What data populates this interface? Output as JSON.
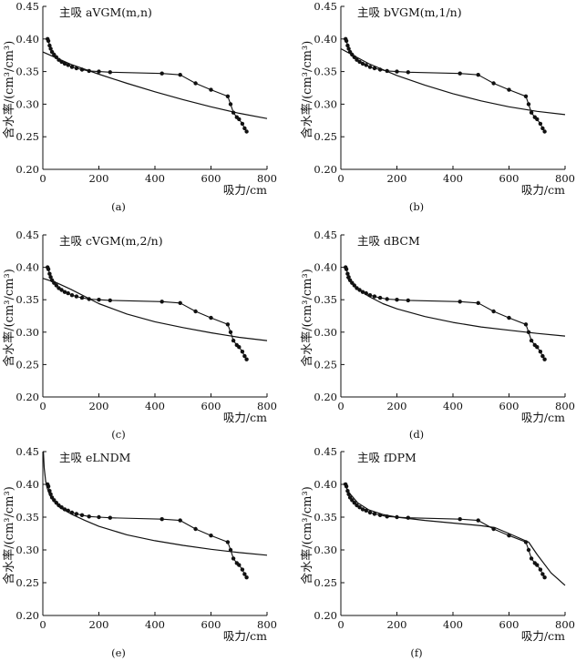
{
  "chart_data": [
    {
      "type": "line",
      "panel": "a",
      "caption": "(a)",
      "title": "主吸 aVGM(m,n)",
      "xlabel": "吸力/cm",
      "ylabel": "含水率/(cm³/cm³)",
      "xlim": [
        0,
        800
      ],
      "ylim": [
        0.2,
        0.45
      ],
      "xticks": [
        "0",
        "200",
        "400",
        "600",
        "800"
      ],
      "yticks": [
        "0.20",
        "0.25",
        "0.30",
        "0.35",
        "0.40",
        "0.45"
      ],
      "grid": false,
      "series": [
        {
          "marker": "dot",
          "x": [
            17,
            20,
            24,
            28,
            33,
            40,
            48,
            57,
            67,
            78,
            90,
            104,
            120,
            140,
            165,
            200,
            240,
            425,
            490,
            545,
            600,
            660,
            670,
            680,
            692,
            700,
            712,
            720,
            727
          ],
          "y": [
            0.4,
            0.397,
            0.39,
            0.385,
            0.38,
            0.376,
            0.372,
            0.368,
            0.365,
            0.362,
            0.36,
            0.357,
            0.355,
            0.353,
            0.351,
            0.35,
            0.349,
            0.347,
            0.345,
            0.332,
            0.322,
            0.312,
            0.3,
            0.287,
            0.28,
            0.277,
            0.27,
            0.263,
            0.258
          ]
        },
        {
          "marker": "none",
          "x": [
            0,
            100,
            200,
            300,
            400,
            500,
            600,
            700,
            800
          ],
          "y": [
            0.38,
            0.361,
            0.346,
            0.332,
            0.319,
            0.307,
            0.296,
            0.286,
            0.278
          ]
        }
      ]
    },
    {
      "type": "line",
      "panel": "b",
      "caption": "(b)",
      "title": "主吸 bVGM(m,1/n)",
      "xlabel": "吸力/cm",
      "ylabel": "含水率/(cm³/cm³)",
      "xlim": [
        0,
        800
      ],
      "ylim": [
        0.2,
        0.45
      ],
      "xticks": [
        "0",
        "200",
        "400",
        "600",
        "800"
      ],
      "yticks": [
        "0.20",
        "0.25",
        "0.30",
        "0.35",
        "0.40",
        "0.45"
      ],
      "grid": false,
      "series": [
        {
          "marker": "dot",
          "x": [
            17,
            20,
            24,
            28,
            33,
            40,
            48,
            57,
            67,
            78,
            90,
            104,
            120,
            140,
            165,
            200,
            240,
            425,
            490,
            545,
            600,
            660,
            670,
            680,
            692,
            700,
            712,
            720,
            727
          ],
          "y": [
            0.4,
            0.397,
            0.39,
            0.385,
            0.38,
            0.376,
            0.372,
            0.368,
            0.365,
            0.362,
            0.36,
            0.357,
            0.355,
            0.353,
            0.351,
            0.35,
            0.349,
            0.347,
            0.345,
            0.332,
            0.322,
            0.312,
            0.3,
            0.287,
            0.28,
            0.277,
            0.27,
            0.263,
            0.258
          ]
        },
        {
          "marker": "none",
          "x": [
            0,
            100,
            200,
            300,
            400,
            500,
            600,
            700,
            800
          ],
          "y": [
            0.385,
            0.362,
            0.344,
            0.329,
            0.316,
            0.305,
            0.296,
            0.289,
            0.284
          ]
        }
      ]
    },
    {
      "type": "line",
      "panel": "c",
      "caption": "(c)",
      "title": "主吸 cVGM(m,2/n)",
      "xlabel": "吸力/cm",
      "ylabel": "含水率/(cm³/cm³)",
      "xlim": [
        0,
        800
      ],
      "ylim": [
        0.2,
        0.45
      ],
      "xticks": [
        "0",
        "200",
        "400",
        "600",
        "800"
      ],
      "yticks": [
        "0.20",
        "0.25",
        "0.30",
        "0.35",
        "0.40",
        "0.45"
      ],
      "grid": false,
      "series": [
        {
          "marker": "dot",
          "x": [
            17,
            20,
            24,
            28,
            33,
            40,
            48,
            57,
            67,
            78,
            90,
            104,
            120,
            140,
            165,
            200,
            240,
            425,
            490,
            545,
            600,
            660,
            670,
            680,
            692,
            700,
            712,
            720,
            727
          ],
          "y": [
            0.4,
            0.397,
            0.39,
            0.385,
            0.38,
            0.376,
            0.372,
            0.368,
            0.365,
            0.362,
            0.36,
            0.357,
            0.355,
            0.353,
            0.351,
            0.35,
            0.349,
            0.347,
            0.345,
            0.332,
            0.322,
            0.312,
            0.3,
            0.287,
            0.28,
            0.277,
            0.27,
            0.263,
            0.258
          ]
        },
        {
          "marker": "none",
          "x": [
            0,
            50,
            100,
            200,
            300,
            400,
            500,
            600,
            700,
            800
          ],
          "y": [
            0.383,
            0.376,
            0.366,
            0.344,
            0.328,
            0.316,
            0.307,
            0.299,
            0.292,
            0.287
          ]
        }
      ]
    },
    {
      "type": "line",
      "panel": "d",
      "caption": "(d)",
      "title": "主吸 dBCM",
      "xlabel": "吸力/cm",
      "ylabel": "含水率/(cm³/cm³)",
      "xlim": [
        0,
        800
      ],
      "ylim": [
        0.2,
        0.45
      ],
      "xticks": [
        "0",
        "200",
        "400",
        "600",
        "800"
      ],
      "yticks": [
        "0.20",
        "0.25",
        "0.30",
        "0.35",
        "0.40",
        "0.45"
      ],
      "grid": false,
      "series": [
        {
          "marker": "dot",
          "x": [
            17,
            20,
            24,
            28,
            33,
            40,
            48,
            57,
            67,
            78,
            90,
            104,
            120,
            140,
            165,
            200,
            240,
            425,
            490,
            545,
            600,
            660,
            670,
            680,
            692,
            700,
            712,
            720,
            727
          ],
          "y": [
            0.4,
            0.397,
            0.39,
            0.385,
            0.38,
            0.376,
            0.372,
            0.368,
            0.365,
            0.362,
            0.36,
            0.357,
            0.355,
            0.353,
            0.351,
            0.35,
            0.349,
            0.347,
            0.345,
            0.332,
            0.322,
            0.312,
            0.3,
            0.287,
            0.28,
            0.277,
            0.27,
            0.263,
            0.258
          ]
        },
        {
          "marker": "none",
          "x": [
            20,
            50,
            100,
            150,
            200,
            300,
            400,
            500,
            600,
            700,
            800
          ],
          "y": [
            0.385,
            0.37,
            0.355,
            0.344,
            0.336,
            0.324,
            0.315,
            0.308,
            0.303,
            0.298,
            0.294
          ]
        }
      ]
    },
    {
      "type": "line",
      "panel": "e",
      "caption": "(e)",
      "title": "主吸 eLNDM",
      "xlabel": "吸力/cm",
      "ylabel": "含水率/(cm³/cm³)",
      "xlim": [
        0,
        800
      ],
      "ylim": [
        0.2,
        0.45
      ],
      "xticks": [
        "0",
        "200",
        "400",
        "600",
        "800"
      ],
      "yticks": [
        "0.20",
        "0.25",
        "0.30",
        "0.35",
        "0.40",
        "0.45"
      ],
      "grid": false,
      "series": [
        {
          "marker": "dot",
          "x": [
            17,
            20,
            24,
            28,
            33,
            40,
            48,
            57,
            67,
            78,
            90,
            104,
            120,
            140,
            165,
            200,
            240,
            425,
            490,
            545,
            600,
            660,
            670,
            680,
            692,
            700,
            712,
            720,
            727
          ],
          "y": [
            0.4,
            0.397,
            0.39,
            0.385,
            0.38,
            0.376,
            0.372,
            0.368,
            0.365,
            0.362,
            0.36,
            0.357,
            0.355,
            0.353,
            0.351,
            0.35,
            0.349,
            0.347,
            0.345,
            0.332,
            0.322,
            0.312,
            0.3,
            0.287,
            0.28,
            0.277,
            0.27,
            0.263,
            0.258
          ]
        },
        {
          "marker": "none",
          "x": [
            2,
            5,
            10,
            15,
            25,
            40,
            60,
            100,
            150,
            200,
            300,
            400,
            500,
            600,
            700,
            800
          ],
          "y": [
            0.45,
            0.425,
            0.405,
            0.395,
            0.383,
            0.374,
            0.365,
            0.355,
            0.345,
            0.336,
            0.323,
            0.314,
            0.307,
            0.301,
            0.296,
            0.292
          ]
        }
      ]
    },
    {
      "type": "line",
      "panel": "f",
      "caption": "(f)",
      "title": "主吸 fDPM",
      "xlabel": "吸力/cm",
      "ylabel": "含水率/(cm³/cm³)",
      "xlim": [
        0,
        800
      ],
      "ylim": [
        0.2,
        0.45
      ],
      "xticks": [
        "0",
        "200",
        "400",
        "600",
        "800"
      ],
      "yticks": [
        "0.20",
        "0.25",
        "0.30",
        "0.35",
        "0.40",
        "0.45"
      ],
      "grid": false,
      "series": [
        {
          "marker": "dot",
          "x": [
            17,
            20,
            24,
            28,
            33,
            40,
            48,
            57,
            67,
            78,
            90,
            104,
            120,
            140,
            165,
            200,
            240,
            425,
            490,
            545,
            600,
            660,
            670,
            680,
            692,
            700,
            712,
            720,
            727
          ],
          "y": [
            0.4,
            0.397,
            0.39,
            0.385,
            0.38,
            0.376,
            0.372,
            0.368,
            0.365,
            0.362,
            0.36,
            0.357,
            0.355,
            0.353,
            0.351,
            0.35,
            0.349,
            0.347,
            0.345,
            0.332,
            0.322,
            0.312,
            0.3,
            0.287,
            0.28,
            0.277,
            0.27,
            0.263,
            0.258
          ]
        },
        {
          "marker": "none",
          "x": [
            10,
            30,
            60,
            100,
            150,
            200,
            300,
            400,
            500,
            550,
            600,
            670,
            700,
            750,
            800
          ],
          "y": [
            0.402,
            0.387,
            0.372,
            0.361,
            0.354,
            0.35,
            0.345,
            0.341,
            0.337,
            0.334,
            0.325,
            0.312,
            0.293,
            0.265,
            0.246
          ]
        }
      ]
    }
  ]
}
